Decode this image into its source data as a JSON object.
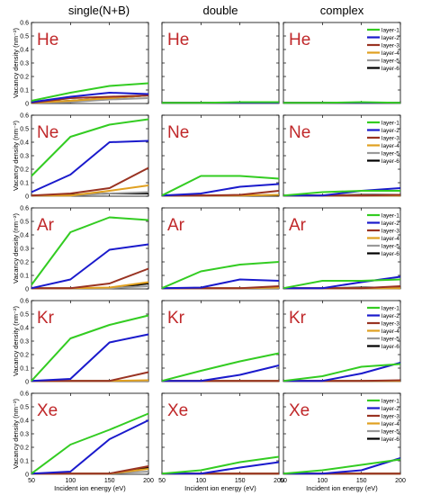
{
  "columns": [
    "single(N+B)",
    "double",
    "complex"
  ],
  "rows": [
    "He",
    "Ne",
    "Ar",
    "Kr",
    "Xe"
  ],
  "ylabel": "Vacancy density (nm⁻²)",
  "xlabel": "Incident ion energy (eV)",
  "xticks": [
    50,
    100,
    150,
    200
  ],
  "yticks": [
    "0",
    "0.1",
    "0.2",
    "0.3",
    "0.4",
    "0.5",
    "0.6"
  ],
  "legend": [
    {
      "label": "layer-1",
      "color": "#33cc22"
    },
    {
      "label": "layer-2",
      "color": "#1a1acc"
    },
    {
      "label": "layer-3",
      "color": "#993322"
    },
    {
      "label": "layer-4",
      "color": "#e0a020"
    },
    {
      "label": "layer-5",
      "color": "#999999"
    },
    {
      "label": "layer-6",
      "color": "#000000"
    }
  ],
  "chart_data": {
    "type": "line",
    "x": [
      50,
      100,
      150,
      200
    ],
    "xlabel": "Incident ion energy (eV)",
    "ylabel": "Vacancy density (nm⁻²)",
    "xlim": [
      50,
      200
    ],
    "ylim": [
      0,
      0.6
    ],
    "panels": [
      {
        "column": "single(N+B)",
        "element": "He",
        "series": [
          {
            "name": "layer-1",
            "values": [
              0.02,
              0.08,
              0.13,
              0.15
            ]
          },
          {
            "name": "layer-2",
            "values": [
              0.01,
              0.05,
              0.08,
              0.07
            ]
          },
          {
            "name": "layer-3",
            "values": [
              0.0,
              0.04,
              0.05,
              0.06
            ]
          },
          {
            "name": "layer-4",
            "values": [
              0.0,
              0.02,
              0.04,
              0.06
            ]
          },
          {
            "name": "layer-5",
            "values": [
              0.0,
              0.01,
              0.03,
              0.04
            ]
          },
          {
            "name": "layer-6",
            "values": [
              0.0,
              0.02,
              0.04,
              0.06
            ]
          }
        ]
      },
      {
        "column": "double",
        "element": "He",
        "series": [
          {
            "name": "layer-1",
            "values": [
              0.0,
              0.005,
              0.01,
              0.01
            ]
          },
          {
            "name": "layer-2",
            "values": [
              0.0,
              0.0,
              0.005,
              0.005
            ]
          },
          {
            "name": "layer-3",
            "values": [
              0.0,
              0.0,
              0.0,
              0.0
            ]
          },
          {
            "name": "layer-4",
            "values": [
              0.0,
              0.0,
              0.0,
              0.0
            ]
          },
          {
            "name": "layer-5",
            "values": [
              0.0,
              0.0,
              0.0,
              0.0
            ]
          },
          {
            "name": "layer-6",
            "values": [
              0.0,
              0.005,
              0.005,
              0.005
            ]
          }
        ]
      },
      {
        "column": "complex",
        "element": "He",
        "series": [
          {
            "name": "layer-1",
            "values": [
              0.0,
              0.005,
              0.01,
              0.005
            ]
          },
          {
            "name": "layer-2",
            "values": [
              0.0,
              0.0,
              0.0,
              0.0
            ]
          },
          {
            "name": "layer-3",
            "values": [
              0.0,
              0.0,
              0.0,
              0.0
            ]
          },
          {
            "name": "layer-4",
            "values": [
              0.0,
              0.0,
              0.0,
              0.0
            ]
          },
          {
            "name": "layer-5",
            "values": [
              0.0,
              0.0,
              0.0,
              0.0
            ]
          },
          {
            "name": "layer-6",
            "values": [
              0.0,
              0.005,
              0.005,
              0.005
            ]
          }
        ]
      },
      {
        "column": "single(N+B)",
        "element": "Ne",
        "series": [
          {
            "name": "layer-1",
            "values": [
              0.15,
              0.44,
              0.53,
              0.57
            ]
          },
          {
            "name": "layer-2",
            "values": [
              0.03,
              0.16,
              0.4,
              0.41
            ]
          },
          {
            "name": "layer-3",
            "values": [
              0.0,
              0.02,
              0.06,
              0.21
            ]
          },
          {
            "name": "layer-4",
            "values": [
              0.0,
              0.0,
              0.04,
              0.08
            ]
          },
          {
            "name": "layer-5",
            "values": [
              0.0,
              0.0,
              0.02,
              0.03
            ]
          },
          {
            "name": "layer-6",
            "values": [
              0.0,
              0.01,
              0.02,
              0.02
            ]
          }
        ]
      },
      {
        "column": "double",
        "element": "Ne",
        "series": [
          {
            "name": "layer-1",
            "values": [
              0.0,
              0.15,
              0.15,
              0.13
            ]
          },
          {
            "name": "layer-2",
            "values": [
              0.0,
              0.02,
              0.07,
              0.09
            ]
          },
          {
            "name": "layer-3",
            "values": [
              0.0,
              0.0,
              0.01,
              0.04
            ]
          },
          {
            "name": "layer-4",
            "values": [
              0.0,
              0.0,
              0.0,
              0.01
            ]
          },
          {
            "name": "layer-5",
            "values": [
              0.0,
              0.0,
              0.0,
              0.01
            ]
          },
          {
            "name": "layer-6",
            "values": [
              0.0,
              0.0,
              0.0,
              0.0
            ]
          }
        ]
      },
      {
        "column": "complex",
        "element": "Ne",
        "series": [
          {
            "name": "layer-1",
            "values": [
              0.0,
              0.03,
              0.04,
              0.04
            ]
          },
          {
            "name": "layer-2",
            "values": [
              0.0,
              0.0,
              0.04,
              0.06
            ]
          },
          {
            "name": "layer-3",
            "values": [
              0.0,
              0.0,
              0.0,
              0.01
            ]
          },
          {
            "name": "layer-4",
            "values": [
              0.0,
              0.0,
              0.0,
              0.0
            ]
          },
          {
            "name": "layer-5",
            "values": [
              0.0,
              0.0,
              0.0,
              0.0
            ]
          },
          {
            "name": "layer-6",
            "values": [
              0.0,
              0.0,
              0.01,
              0.01
            ]
          }
        ]
      },
      {
        "column": "single(N+B)",
        "element": "Ar",
        "series": [
          {
            "name": "layer-1",
            "values": [
              0.03,
              0.42,
              0.53,
              0.51
            ]
          },
          {
            "name": "layer-2",
            "values": [
              0.0,
              0.07,
              0.29,
              0.33
            ]
          },
          {
            "name": "layer-3",
            "values": [
              0.0,
              0.0,
              0.04,
              0.15
            ]
          },
          {
            "name": "layer-4",
            "values": [
              0.0,
              0.0,
              0.01,
              0.05
            ]
          },
          {
            "name": "layer-5",
            "values": [
              0.0,
              0.0,
              0.0,
              0.02
            ]
          },
          {
            "name": "layer-6",
            "values": [
              0.0,
              0.0,
              0.0,
              0.04
            ]
          }
        ]
      },
      {
        "column": "double",
        "element": "Ar",
        "series": [
          {
            "name": "layer-1",
            "values": [
              0.0,
              0.13,
              0.18,
              0.2
            ]
          },
          {
            "name": "layer-2",
            "values": [
              0.0,
              0.01,
              0.07,
              0.06
            ]
          },
          {
            "name": "layer-3",
            "values": [
              0.0,
              0.0,
              0.0,
              0.02
            ]
          },
          {
            "name": "layer-4",
            "values": [
              0.0,
              0.0,
              0.0,
              0.01
            ]
          },
          {
            "name": "layer-5",
            "values": [
              0.0,
              0.0,
              0.0,
              0.0
            ]
          },
          {
            "name": "layer-6",
            "values": [
              0.0,
              0.0,
              0.0,
              0.0
            ]
          }
        ]
      },
      {
        "column": "complex",
        "element": "Ar",
        "series": [
          {
            "name": "layer-1",
            "values": [
              0.0,
              0.06,
              0.06,
              0.07
            ]
          },
          {
            "name": "layer-2",
            "values": [
              0.0,
              0.0,
              0.05,
              0.09
            ]
          },
          {
            "name": "layer-3",
            "values": [
              0.0,
              0.0,
              0.0,
              0.02
            ]
          },
          {
            "name": "layer-4",
            "values": [
              0.0,
              0.0,
              0.0,
              0.0
            ]
          },
          {
            "name": "layer-5",
            "values": [
              0.0,
              0.0,
              0.0,
              0.0
            ]
          },
          {
            "name": "layer-6",
            "values": [
              0.0,
              0.0,
              0.01,
              0.01
            ]
          }
        ]
      },
      {
        "column": "single(N+B)",
        "element": "Kr",
        "series": [
          {
            "name": "layer-1",
            "values": [
              0.0,
              0.32,
              0.42,
              0.49
            ]
          },
          {
            "name": "layer-2",
            "values": [
              0.0,
              0.02,
              0.29,
              0.35
            ]
          },
          {
            "name": "layer-3",
            "values": [
              0.0,
              0.0,
              0.0,
              0.07
            ]
          },
          {
            "name": "layer-4",
            "values": [
              0.0,
              0.0,
              0.0,
              0.01
            ]
          },
          {
            "name": "layer-5",
            "values": [
              0.0,
              0.0,
              0.0,
              0.0
            ]
          },
          {
            "name": "layer-6",
            "values": [
              0.0,
              0.0,
              0.0,
              0.0
            ]
          }
        ]
      },
      {
        "column": "double",
        "element": "Kr",
        "series": [
          {
            "name": "layer-1",
            "values": [
              0.0,
              0.08,
              0.15,
              0.21
            ]
          },
          {
            "name": "layer-2",
            "values": [
              0.0,
              0.0,
              0.05,
              0.12
            ]
          },
          {
            "name": "layer-3",
            "values": [
              0.0,
              0.0,
              0.0,
              0.0
            ]
          },
          {
            "name": "layer-4",
            "values": [
              0.0,
              0.0,
              0.0,
              0.0
            ]
          },
          {
            "name": "layer-5",
            "values": [
              0.0,
              0.0,
              0.0,
              0.0
            ]
          },
          {
            "name": "layer-6",
            "values": [
              0.0,
              0.0,
              0.0,
              0.0
            ]
          }
        ]
      },
      {
        "column": "complex",
        "element": "Kr",
        "series": [
          {
            "name": "layer-1",
            "values": [
              0.0,
              0.04,
              0.11,
              0.13
            ]
          },
          {
            "name": "layer-2",
            "values": [
              0.0,
              0.0,
              0.06,
              0.14
            ]
          },
          {
            "name": "layer-3",
            "values": [
              0.0,
              0.0,
              0.0,
              0.01
            ]
          },
          {
            "name": "layer-4",
            "values": [
              0.0,
              0.0,
              0.0,
              0.0
            ]
          },
          {
            "name": "layer-5",
            "values": [
              0.0,
              0.0,
              0.0,
              0.0
            ]
          },
          {
            "name": "layer-6",
            "values": [
              0.0,
              0.0,
              0.0,
              0.0
            ]
          }
        ]
      },
      {
        "column": "single(N+B)",
        "element": "Xe",
        "series": [
          {
            "name": "layer-1",
            "values": [
              0.0,
              0.22,
              0.33,
              0.45
            ]
          },
          {
            "name": "layer-2",
            "values": [
              0.0,
              0.02,
              0.26,
              0.4
            ]
          },
          {
            "name": "layer-3",
            "values": [
              0.0,
              0.0,
              0.0,
              0.06
            ]
          },
          {
            "name": "layer-4",
            "values": [
              0.0,
              0.0,
              0.0,
              0.04
            ]
          },
          {
            "name": "layer-5",
            "values": [
              0.0,
              0.0,
              0.0,
              0.02
            ]
          },
          {
            "name": "layer-6",
            "values": [
              0.0,
              0.0,
              0.0,
              0.05
            ]
          }
        ]
      },
      {
        "column": "double",
        "element": "Xe",
        "series": [
          {
            "name": "layer-1",
            "values": [
              0.0,
              0.03,
              0.09,
              0.13
            ]
          },
          {
            "name": "layer-2",
            "values": [
              0.0,
              0.0,
              0.05,
              0.09
            ]
          },
          {
            "name": "layer-3",
            "values": [
              0.0,
              0.0,
              0.0,
              0.0
            ]
          },
          {
            "name": "layer-4",
            "values": [
              0.0,
              0.0,
              0.0,
              0.0
            ]
          },
          {
            "name": "layer-5",
            "values": [
              0.0,
              0.0,
              0.0,
              0.0
            ]
          },
          {
            "name": "layer-6",
            "values": [
              0.0,
              0.0,
              0.0,
              0.0
            ]
          }
        ]
      },
      {
        "column": "complex",
        "element": "Xe",
        "series": [
          {
            "name": "layer-1",
            "values": [
              0.0,
              0.03,
              0.07,
              0.11
            ]
          },
          {
            "name": "layer-2",
            "values": [
              0.0,
              0.0,
              0.03,
              0.12
            ]
          },
          {
            "name": "layer-3",
            "values": [
              0.0,
              0.0,
              0.0,
              0.0
            ]
          },
          {
            "name": "layer-4",
            "values": [
              0.0,
              0.0,
              0.0,
              0.0
            ]
          },
          {
            "name": "layer-5",
            "values": [
              0.0,
              0.0,
              0.0,
              0.0
            ]
          },
          {
            "name": "layer-6",
            "values": [
              0.0,
              0.0,
              0.0,
              0.0
            ]
          }
        ]
      }
    ]
  }
}
